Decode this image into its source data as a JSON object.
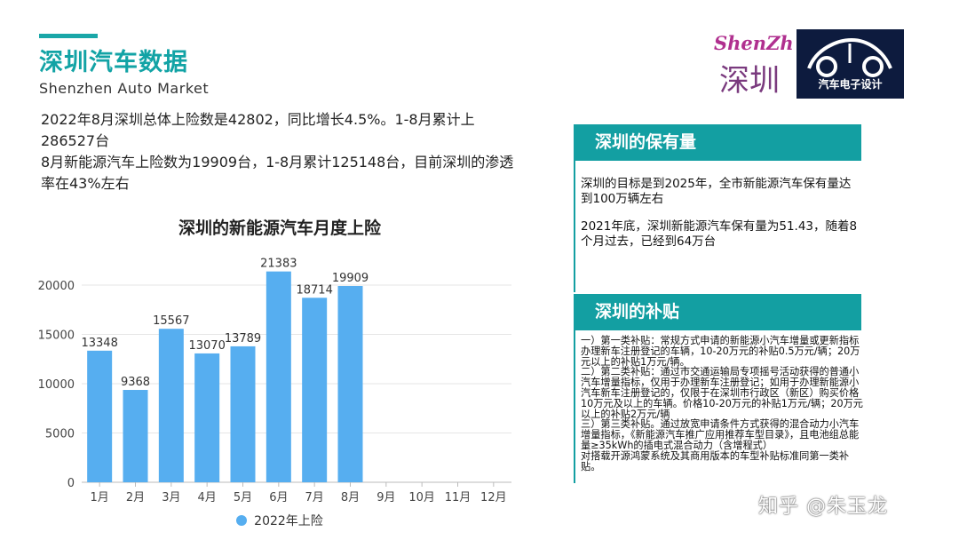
{
  "header": {
    "title": "深圳汽车数据",
    "subtitle": "Shenzhen Auto Market"
  },
  "intro": {
    "line1": "2022年8月深圳总体上险数是42802，同比增长4.5%。1-8月累计上286527台",
    "line2": "8月新能源汽车上险数为19909台，1-8月累计125148台，目前深圳的渗透率在43%左右"
  },
  "chart_data": {
    "type": "bar",
    "title": "深圳的新能源汽车月度上险",
    "categories": [
      "1月",
      "2月",
      "3月",
      "4月",
      "5月",
      "6月",
      "7月",
      "8月",
      "9月",
      "10月",
      "11月",
      "12月"
    ],
    "series": [
      {
        "name": "2022年上险",
        "values": [
          13348,
          9368,
          15567,
          13070,
          13789,
          21383,
          18714,
          19909,
          null,
          null,
          null,
          null
        ],
        "color": "#56aef0"
      }
    ],
    "ylim": [
      0,
      20000
    ],
    "yticks": [
      0,
      5000,
      10000,
      15000,
      20000
    ],
    "grid": true,
    "legend": "bottom"
  },
  "logos": {
    "logo1_text": "深圳",
    "logo1_script": "ShenZhen",
    "logo2_text": "汽车电子设计"
  },
  "panel1": {
    "heading": "深圳的保有量",
    "para1": "深圳的目标是到2025年，全市新能源汽车保有量达到100万辆左右",
    "para2": "2021年底，深圳新能源汽车保有量为51.43，随着8个月过去，已经到64万台"
  },
  "panel2": {
    "heading": "深圳的补贴",
    "p1": "一）第一类补贴：常规方式申请的新能源小汽车增量或更新指标办理新车注册登记的车辆，10-20万元的补贴0.5万元/辆；20万元以上的补贴1万元/辆。",
    "p2": "二）第二类补贴：通过市交通运输局专项摇号活动获得的普通小汽车增量指标，仅用于办理新车注册登记；如用于办理新能源小汽车新车注册登记的，仅限于在深圳市行政区（新区）购买价格10万元及以上的车辆。价格10-20万元的补贴1万元/辆；20万元以上的补贴2万元/辆",
    "p3": "三）第三类补贴。通过放宽申请条件方式获得的混合动力小汽车增量指标，《新能源汽车推广应用推荐车型目录》，且电池组总能量≥35kWh的插电式混合动力（含增程式）",
    "p4": "对搭载开源鸿蒙系统及其商用版本的车型补贴标准同第一类补贴。"
  },
  "watermark": "知乎 @朱玉龙",
  "colors": {
    "accent": "#139fa2",
    "bar": "#56aef0",
    "logo_bg": "#0d1b3e"
  }
}
